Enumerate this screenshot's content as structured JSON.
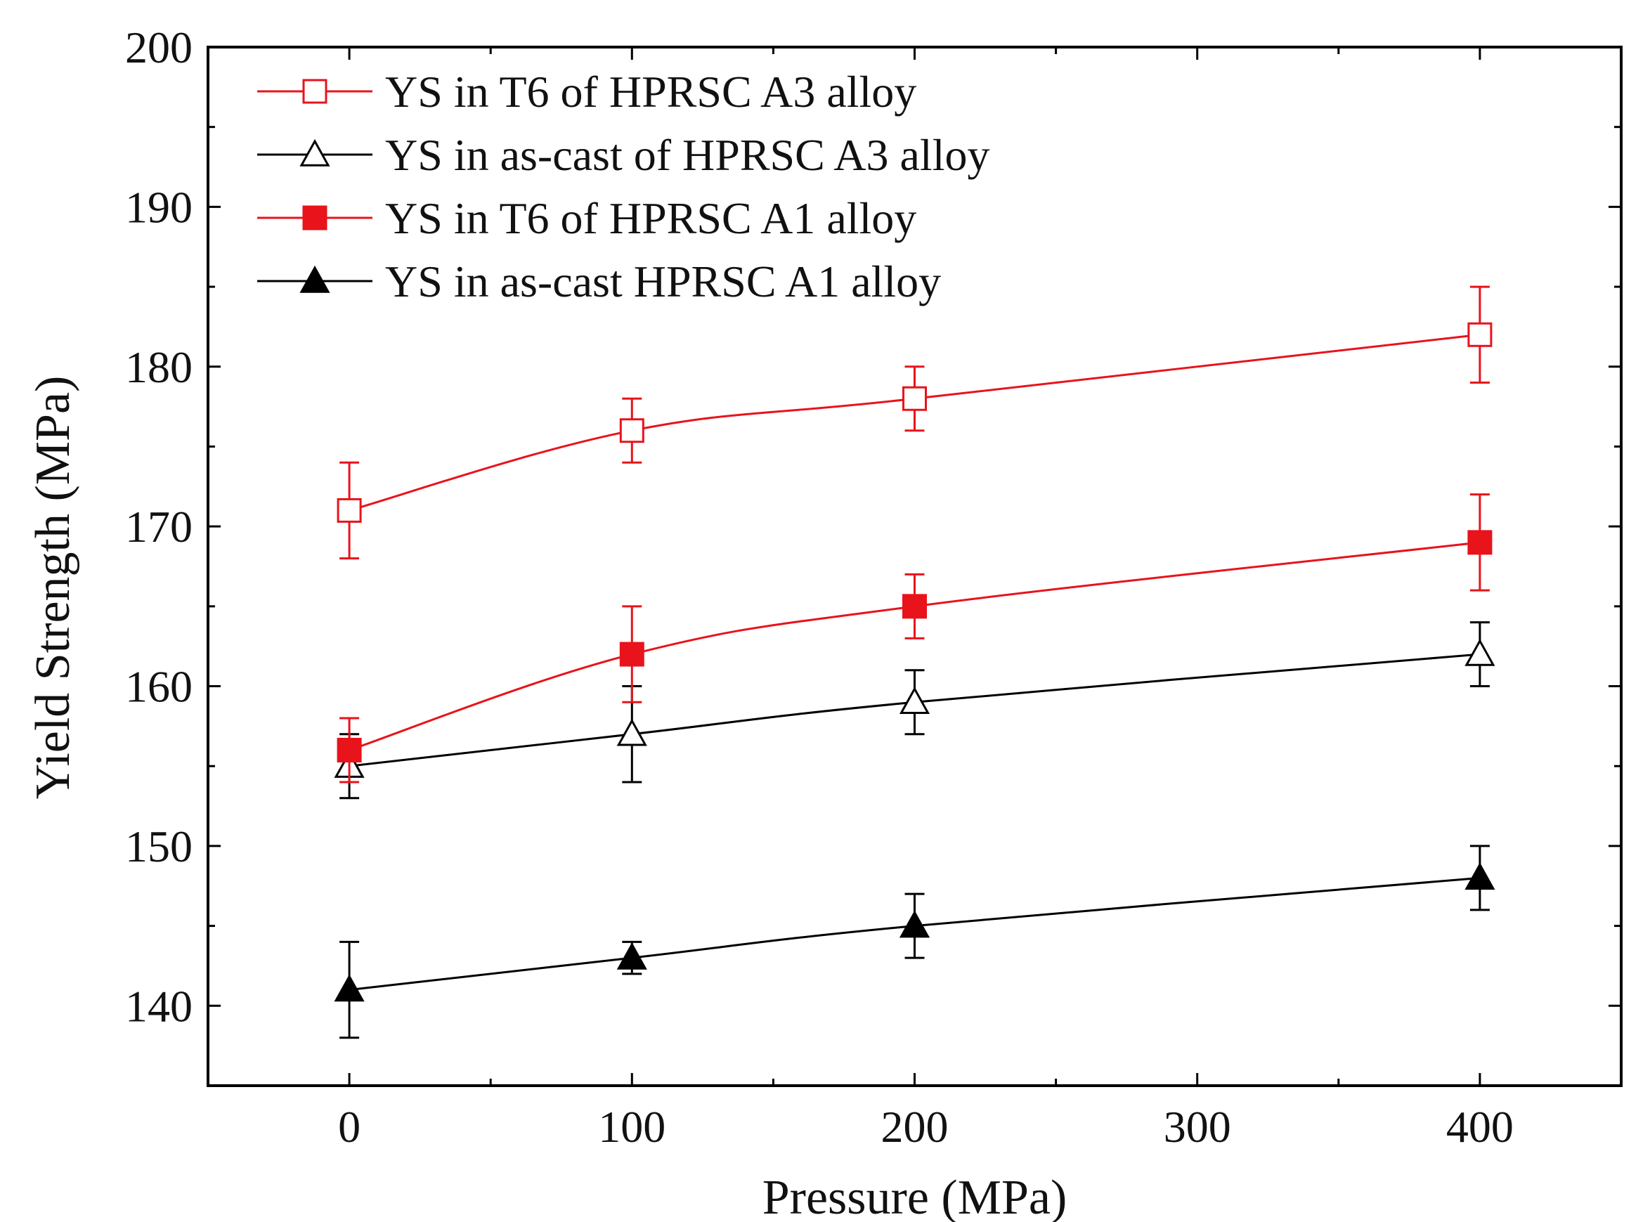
{
  "chart_data": {
    "type": "line",
    "xlabel": "Pressure (MPa)",
    "ylabel": "Yield Strength (MPa)",
    "xlim": [
      -50,
      450
    ],
    "ylim": [
      135,
      200
    ],
    "x_ticks": [
      0,
      100,
      200,
      300,
      400
    ],
    "y_ticks": [
      140,
      150,
      160,
      170,
      180,
      190,
      200
    ],
    "legend_position": "top-left",
    "x": [
      0,
      100,
      200,
      400
    ],
    "series": [
      {
        "name": "YS in T6 of HPRSC A3 alloy",
        "color": "#e8131b",
        "marker": "square-open",
        "values": [
          171,
          176,
          178,
          182
        ],
        "err_upper": [
          3,
          2,
          2,
          3
        ],
        "err_lower": [
          3,
          2,
          2,
          3
        ]
      },
      {
        "name": "YS in as-cast of HPRSC A3 alloy",
        "color": "#000000",
        "marker": "triangle-open",
        "values": [
          155,
          157,
          159,
          162
        ],
        "err_upper": [
          2,
          3,
          2,
          2
        ],
        "err_lower": [
          2,
          3,
          2,
          2
        ]
      },
      {
        "name": "YS in T6 of HPRSC A1 alloy",
        "color": "#e8131b",
        "marker": "square-filled",
        "values": [
          156,
          162,
          165,
          169
        ],
        "err_upper": [
          2,
          3,
          2,
          3
        ],
        "err_lower": [
          2,
          3,
          2,
          3
        ]
      },
      {
        "name": "YS in as-cast HPRSC A1 alloy",
        "color": "#000000",
        "marker": "triangle-filled",
        "values": [
          141,
          143,
          145,
          148
        ],
        "err_upper": [
          3,
          1,
          2,
          2
        ],
        "err_lower": [
          3,
          1,
          2,
          2
        ]
      }
    ]
  }
}
